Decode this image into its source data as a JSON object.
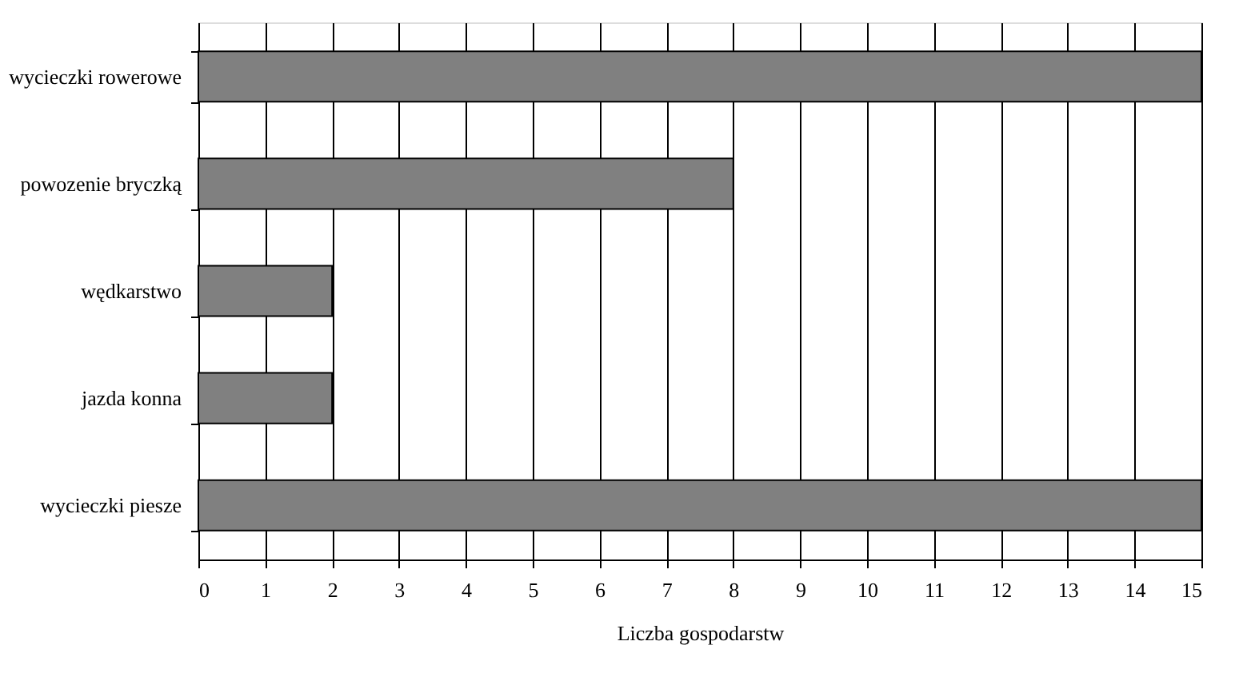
{
  "chart_data": {
    "type": "bar",
    "orientation": "horizontal",
    "xlabel": "Liczba gospodarstw",
    "categories": [
      "wycieczki rowerowe",
      "powozenie bryczką",
      "wędkarstwo",
      "jazda konna",
      "wycieczki piesze"
    ],
    "values": [
      15,
      8,
      2,
      2,
      15
    ],
    "color": "#808080",
    "xlim": [
      0,
      15
    ],
    "xticks": [
      0,
      1,
      2,
      3,
      4,
      5,
      6,
      7,
      8,
      9,
      10,
      11,
      12,
      13,
      14,
      15
    ],
    "grid": "x"
  }
}
